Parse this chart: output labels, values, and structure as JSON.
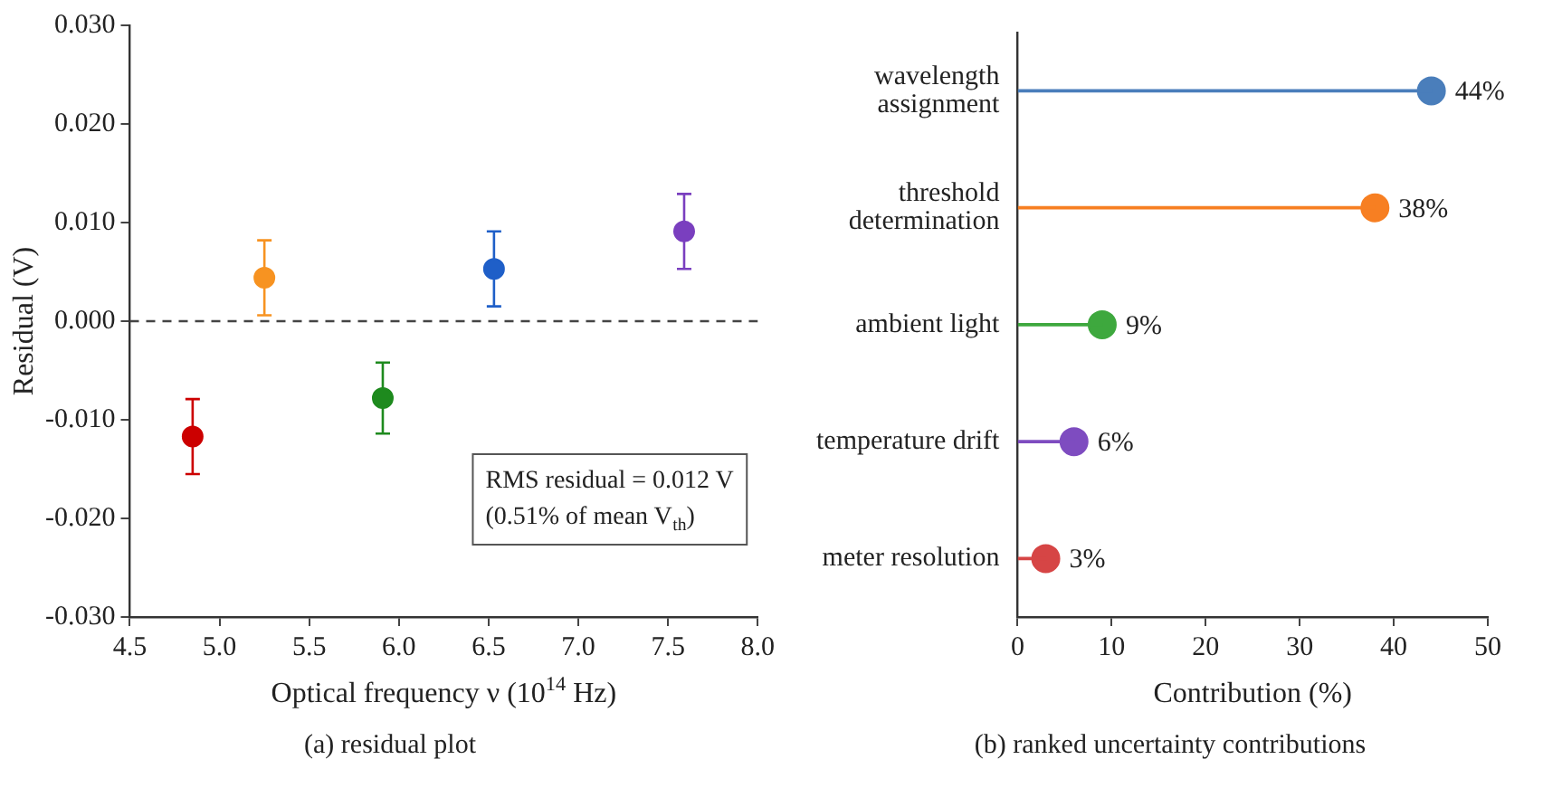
{
  "chart_data": [
    {
      "type": "scatter",
      "title": "(a) residual plot",
      "xlabel": "Optical frequency ν (10$^{14}$ Hz)",
      "ylabel": "Residual (V)",
      "annotations": [
        "RMS residual = 0.012 V",
        "(0.51% of mean V$_{th}$)"
      ],
      "x": [
        4.85,
        5.25,
        5.91,
        6.53,
        7.59
      ],
      "series": [
        {
          "colors": [
            "#cc0000",
            "#f79321",
            "#1e8a1e",
            "#1f5fc8",
            "#7a3fbf"
          ],
          "values": [
            -0.0117,
            0.0044,
            -0.0078,
            0.0053,
            0.0091
          ],
          "errors": [
            0.0038,
            0.0038,
            0.0036,
            0.0038,
            0.0038
          ]
        }
      ],
      "xlim": [
        4.5,
        8.0
      ],
      "xticks": [
        {
          "value": 4.5,
          "label": "4.5"
        },
        {
          "value": 5.0,
          "label": "5.0"
        },
        {
          "value": 5.5,
          "label": "5.5"
        },
        {
          "value": 6.0,
          "label": "6.0"
        },
        {
          "value": 6.5,
          "label": "6.5"
        },
        {
          "value": 7.0,
          "label": "7.0"
        },
        {
          "value": 7.5,
          "label": "7.5"
        },
        {
          "value": 8.0,
          "label": "8.0"
        }
      ],
      "ylim": [
        -0.03,
        0.03
      ],
      "yticks": [
        {
          "value": -0.03,
          "label": "-0.030"
        },
        {
          "value": -0.02,
          "label": "-0.020"
        },
        {
          "value": -0.01,
          "label": "-0.010"
        },
        {
          "value": 0,
          "label": "0.000"
        },
        {
          "value": 0.01,
          "label": "0.010"
        },
        {
          "value": 0.02,
          "label": "0.020"
        },
        {
          "value": 0.03,
          "label": "0.030"
        }
      ],
      "ref_lines": [
        {
          "axis": "y",
          "value": 0,
          "color": "#444444",
          "line_style": "dashed"
        }
      ],
      "marker": "circle",
      "legend": false,
      "grid": false
    },
    {
      "type": "lollipop",
      "orientation": "horizontal",
      "title": "(b) ranked uncertainty contributions",
      "xlabel": "Contribution (%)",
      "categories": [
        "wavelength assignment",
        "threshold determination",
        "ambient light",
        "temperature drift",
        "meter resolution"
      ],
      "values": [
        44,
        38,
        9,
        6,
        3
      ],
      "colors": [
        "#4a7ebb",
        "#f77f22",
        "#3ea83e",
        "#7e4cc0",
        "#d64545"
      ],
      "value_labels": [
        "44%",
        "38%",
        "9%",
        "6%",
        "3%"
      ],
      "xlim": [
        0,
        50
      ],
      "xticks": [
        0,
        10,
        20,
        30,
        40,
        50
      ],
      "marker": "circle",
      "legend": false,
      "grid": false
    }
  ]
}
